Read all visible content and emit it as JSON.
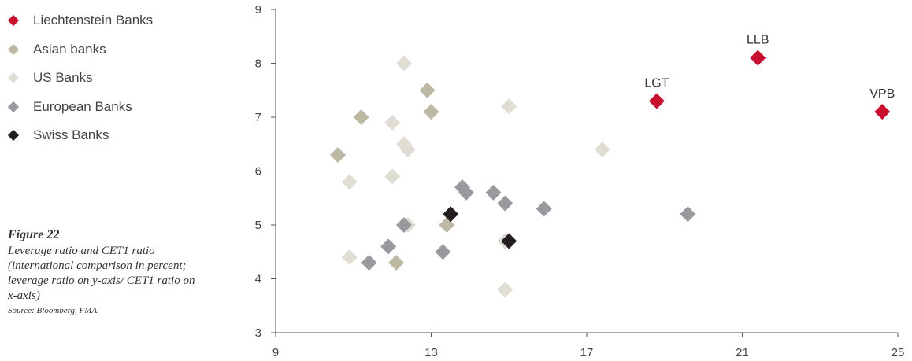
{
  "legend": [
    {
      "label": "Liechtenstein Banks",
      "color": "#c8102e"
    },
    {
      "label": "Asian banks",
      "color": "#bdb8a4"
    },
    {
      "label": "US Banks",
      "color": "#e0ded4"
    },
    {
      "label": "European Banks",
      "color": "#999a9e"
    },
    {
      "label": "Swiss Banks",
      "color": "#231f20"
    }
  ],
  "caption": {
    "figure": "Figure 22",
    "description": "Leverage ratio and CET1 ratio (international comparison in percent; leverage ratio on y-axis/ CET1 ratio on x-axis)",
    "source": "Source: Bloomberg, FMA."
  },
  "chart_data": {
    "type": "scatter",
    "xlim": [
      9,
      25
    ],
    "ylim": [
      3,
      9
    ],
    "x_ticks": [
      "9",
      "13",
      "17",
      "21",
      "25"
    ],
    "y_ticks": [
      "3",
      "4",
      "5",
      "6",
      "7",
      "8",
      "9"
    ],
    "series": [
      {
        "name": "Liechtenstein Banks",
        "color": "#c8102e",
        "points": [
          {
            "x": 18.8,
            "y": 7.3,
            "label": "LGT"
          },
          {
            "x": 21.4,
            "y": 8.1,
            "label": "LLB"
          },
          {
            "x": 24.6,
            "y": 7.1,
            "label": "VPB"
          }
        ]
      },
      {
        "name": "Asian banks",
        "color": "#bdb8a4",
        "points": [
          {
            "x": 10.6,
            "y": 6.3
          },
          {
            "x": 11.2,
            "y": 7.0
          },
          {
            "x": 12.9,
            "y": 7.5
          },
          {
            "x": 13.0,
            "y": 7.1
          },
          {
            "x": 13.4,
            "y": 5.0
          },
          {
            "x": 12.1,
            "y": 4.3
          }
        ]
      },
      {
        "name": "US Banks",
        "color": "#e0ded4",
        "points": [
          {
            "x": 12.3,
            "y": 8.0
          },
          {
            "x": 15.0,
            "y": 7.2
          },
          {
            "x": 12.0,
            "y": 6.9
          },
          {
            "x": 12.3,
            "y": 6.5
          },
          {
            "x": 12.4,
            "y": 6.4
          },
          {
            "x": 17.4,
            "y": 6.4
          },
          {
            "x": 10.9,
            "y": 5.8
          },
          {
            "x": 12.0,
            "y": 5.9
          },
          {
            "x": 12.4,
            "y": 5.0
          },
          {
            "x": 10.9,
            "y": 4.4
          },
          {
            "x": 14.9,
            "y": 4.7
          },
          {
            "x": 14.9,
            "y": 3.8
          }
        ]
      },
      {
        "name": "European Banks",
        "color": "#999a9e",
        "points": [
          {
            "x": 13.8,
            "y": 5.7
          },
          {
            "x": 13.9,
            "y": 5.6
          },
          {
            "x": 14.6,
            "y": 5.6
          },
          {
            "x": 14.9,
            "y": 5.4
          },
          {
            "x": 15.9,
            "y": 5.3
          },
          {
            "x": 19.6,
            "y": 5.2
          },
          {
            "x": 12.3,
            "y": 5.0
          },
          {
            "x": 11.9,
            "y": 4.6
          },
          {
            "x": 11.4,
            "y": 4.3
          },
          {
            "x": 13.3,
            "y": 4.5
          }
        ]
      },
      {
        "name": "Swiss Banks",
        "color": "#231f20",
        "points": [
          {
            "x": 13.5,
            "y": 5.2
          },
          {
            "x": 15.0,
            "y": 4.7
          }
        ]
      }
    ]
  }
}
